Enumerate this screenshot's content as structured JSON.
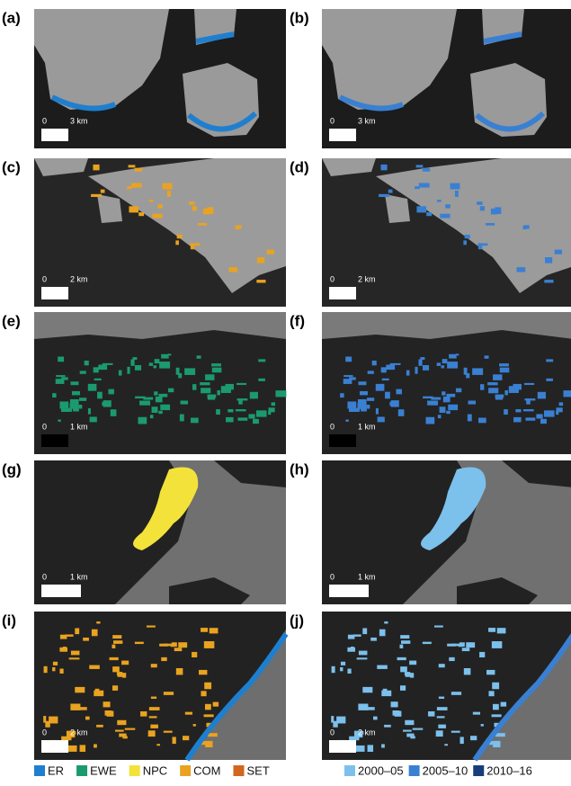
{
  "panels": [
    {
      "label": "(a)",
      "scale_start": "0",
      "scale_end": "3 km"
    },
    {
      "label": "(b)",
      "scale_start": "0",
      "scale_end": "3 km"
    },
    {
      "label": "(c)",
      "scale_start": "0",
      "scale_end": "2 km"
    },
    {
      "label": "(d)",
      "scale_start": "0",
      "scale_end": "2 km"
    },
    {
      "label": "(e)",
      "scale_start": "0",
      "scale_end": "1 km"
    },
    {
      "label": "(f)",
      "scale_start": "0",
      "scale_end": "1 km"
    },
    {
      "label": "(g)",
      "scale_start": "0",
      "scale_end": "1 km"
    },
    {
      "label": "(h)",
      "scale_start": "0",
      "scale_end": "1 km"
    },
    {
      "label": "(i)",
      "scale_start": "0",
      "scale_end": "2 km"
    },
    {
      "label": "(j)",
      "scale_start": "0",
      "scale_end": "2 km"
    }
  ],
  "legend_classes": [
    {
      "name": "ER",
      "color": "#1f7fcf"
    },
    {
      "name": "EWE",
      "color": "#1b9a70"
    },
    {
      "name": "NPC",
      "color": "#f3e23a"
    },
    {
      "name": "COM",
      "color": "#e9a320"
    },
    {
      "name": "SET",
      "color": "#d2661c"
    }
  ],
  "legend_periods": [
    {
      "name": "2000–05",
      "color": "#7cc0ec"
    },
    {
      "name": "2005–10",
      "color": "#3a80d2"
    },
    {
      "name": "2010–16",
      "color": "#173e7a"
    }
  ]
}
